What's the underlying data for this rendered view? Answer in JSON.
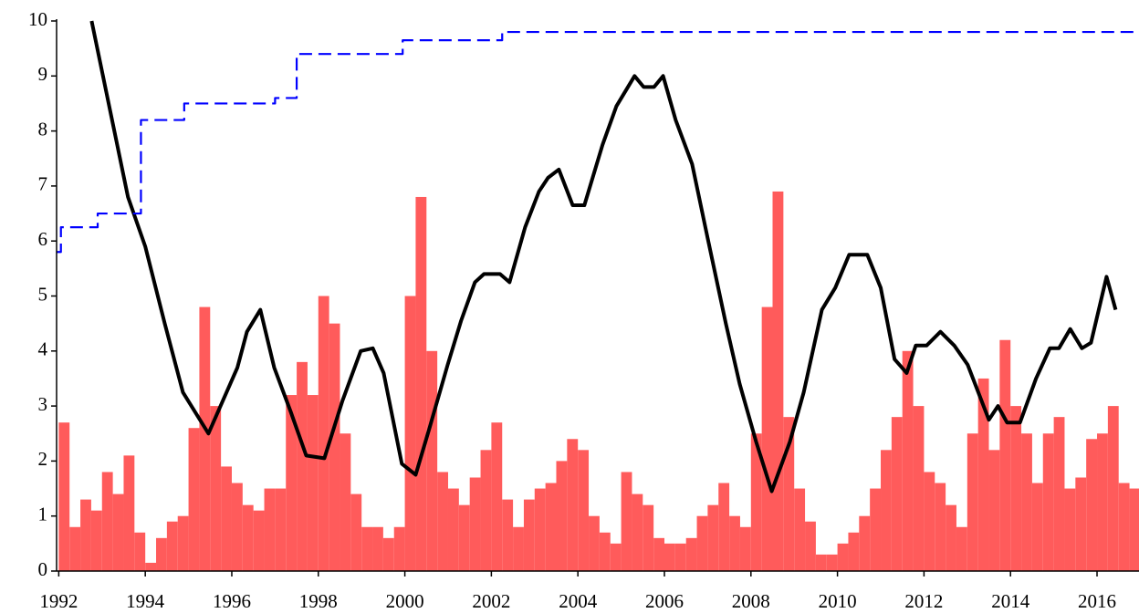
{
  "chart_data": {
    "type": "histogram",
    "bins": [
      1992,
      1992.25,
      1992.5,
      1992.75,
      1993,
      1993.25,
      1993.5,
      1993.75,
      1994,
      1994.25,
      1994.5,
      1994.75,
      1995,
      1995.25,
      1995.5,
      1995.75,
      1996,
      1996.25,
      1996.5,
      1996.75,
      1997,
      1997.25,
      1997.5,
      1997.75,
      1998,
      1998.25,
      1998.5,
      1998.75,
      1999,
      1999.25,
      1999.5,
      1999.75,
      2000,
      2000.25,
      2000.5,
      2000.75,
      2001,
      2001.25,
      2001.5,
      2001.75,
      2002,
      2002.25,
      2002.5,
      2002.75,
      2003,
      2003.25,
      2003.5,
      2003.75,
      2004,
      2004.25,
      2004.5,
      2004.75,
      2005,
      2005.25,
      2005.5,
      2005.75,
      2006,
      2006.25,
      2006.5,
      2006.75,
      2007,
      2007.25,
      2007.5,
      2007.75,
      2008,
      2008.25,
      2008.5,
      2008.75,
      2009,
      2009.25,
      2009.5,
      2009.75,
      2010,
      2010.25,
      2010.5,
      2010.75,
      2011,
      2011.25,
      2011.5,
      2011.75,
      2012,
      2012.25,
      2012.5,
      2012.75,
      2013,
      2013.25,
      2013.5,
      2013.75,
      2014,
      2014.25,
      2014.5,
      2014.75,
      2015,
      2015.25,
      2015.5,
      2015.75,
      2016,
      2016.25,
      2016.5,
      2016.75,
      2017
    ],
    "counts": [
      2.7,
      0.8,
      1.3,
      1.1,
      1.8,
      1.4,
      2.1,
      0.7,
      0.15,
      0.6,
      0.9,
      1.0,
      2.6,
      4.8,
      3.0,
      1.9,
      1.6,
      1.2,
      1.1,
      1.5,
      1.5,
      3.2,
      3.8,
      3.2,
      5.0,
      4.5,
      2.5,
      1.4,
      0.8,
      0.8,
      0.6,
      0.8,
      5.0,
      6.8,
      4.0,
      1.8,
      1.5,
      1.2,
      1.7,
      2.2,
      2.7,
      1.3,
      0.8,
      1.3,
      1.5,
      1.6,
      2.0,
      2.4,
      2.2,
      1.0,
      0.7,
      0.5,
      1.8,
      1.4,
      1.2,
      0.6,
      0.5,
      0.5,
      0.6,
      1.0,
      1.2,
      1.6,
      1.0,
      0.8,
      2.5,
      4.8,
      6.9,
      2.8,
      1.5,
      0.9,
      0.3,
      0.3,
      0.5,
      0.7,
      1.0,
      1.5,
      2.2,
      2.8,
      4.0,
      3.0,
      1.8,
      1.6,
      1.2,
      0.8,
      2.5,
      3.5,
      2.2,
      4.2,
      3.0,
      2.5,
      1.6,
      2.5,
      2.8,
      1.5,
      1.7,
      2.4,
      2.5,
      3.0,
      1.6,
      1.5
    ],
    "color": "#ff5b5b",
    "lines": [
      {
        "color": "#000000",
        "style": "solid",
        "x": [
          1992.76,
          1993.6,
          1994.0,
          1994.45,
          1994.87,
          1995.46,
          1996.13,
          1996.35,
          1996.66,
          1996.98,
          1997.36,
          1997.72,
          1998.14,
          1998.56,
          1998.98,
          1999.26,
          1999.51,
          1999.93,
          2000.25,
          2000.57,
          2000.99,
          2001.3,
          2001.62,
          2001.83,
          2002.2,
          2002.42,
          2002.78,
          2003.1,
          2003.31,
          2003.56,
          2003.88,
          2004.15,
          2004.57,
          2004.89,
          2005.31,
          2005.52,
          2005.76,
          2005.97,
          2006.26,
          2006.64,
          2007.0,
          2007.42,
          2007.74,
          2008.12,
          2008.48,
          2008.9,
          2009.22,
          2009.64,
          2009.95,
          2010.27,
          2010.69,
          2011.0,
          2011.32,
          2011.6,
          2011.81,
          2012.06,
          2012.38,
          2012.7,
          2013.01,
          2013.5,
          2013.71,
          2013.92,
          2014.22,
          2014.59,
          2014.91,
          2015.12,
          2015.38,
          2015.65,
          2015.86,
          2016.22,
          2016.43
        ],
        "values": [
          10.0,
          6.8,
          5.9,
          4.5,
          3.25,
          2.5,
          3.7,
          4.35,
          4.75,
          3.7,
          2.9,
          2.1,
          2.05,
          3.1,
          4.0,
          4.05,
          3.6,
          1.95,
          1.75,
          2.6,
          3.75,
          4.55,
          5.25,
          5.4,
          5.4,
          5.25,
          6.25,
          6.9,
          7.15,
          7.3,
          6.65,
          6.65,
          7.75,
          8.45,
          9.0,
          8.8,
          8.8,
          9.0,
          8.2,
          7.4,
          6.05,
          4.5,
          3.4,
          2.35,
          1.45,
          2.35,
          3.25,
          4.75,
          5.15,
          5.75,
          5.75,
          5.15,
          3.85,
          3.6,
          4.1,
          4.1,
          4.35,
          4.1,
          3.75,
          2.75,
          3.0,
          2.7,
          2.7,
          3.5,
          4.05,
          4.05,
          4.4,
          4.05,
          4.15,
          5.35,
          4.75
        ]
      },
      {
        "color": "#0000ff",
        "style": "dashed",
        "drawstyle": "steps-post",
        "x": [
          1991.95,
          1992.05,
          1992.9,
          1993.9,
          1994.9,
          1997.0,
          1997.5,
          1999.95,
          2002.25,
          2016.97
        ],
        "values": [
          5.8,
          6.25,
          6.5,
          8.2,
          8.5,
          8.6,
          9.4,
          9.65,
          9.8,
          9.8
        ]
      }
    ],
    "xlim": [
      1991.95,
      2016.97
    ],
    "ylim": [
      0,
      10
    ],
    "xticks": [
      1992,
      1994,
      1996,
      1998,
      2000,
      2002,
      2004,
      2006,
      2008,
      2010,
      2012,
      2014,
      2016
    ],
    "yticks": [
      0,
      1,
      2,
      3,
      4,
      5,
      6,
      7,
      8,
      9,
      10
    ]
  }
}
